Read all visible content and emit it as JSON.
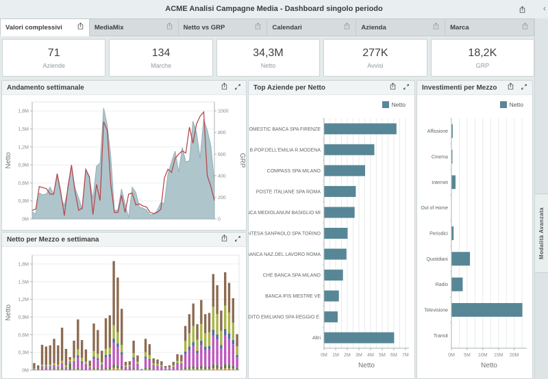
{
  "app": {
    "title": "ACME Analisi Campagne Media - Dashboard singolo periodo",
    "advanced_panel_label": "Modalità Avanzata",
    "collapse_glyph": "‹"
  },
  "colors": {
    "accent_teal": "#578796",
    "area_fill": "#aec5cb",
    "area_edge": "#93aeb6",
    "grp_line": "#b5494f",
    "page_bg": "#e4e9ea",
    "panel_border": "#cdd4d6",
    "tab_active_bg": "#ffffff",
    "tab_inactive_bg": "#d6dcde"
  },
  "icons": {
    "export": "export-share-icon",
    "expand": "fullscreen-expand-icon",
    "collapse": "chevron-left-icon"
  },
  "tabs": [
    {
      "label": "Valori complessivi",
      "active": true
    },
    {
      "label": "MediaMix",
      "active": false
    },
    {
      "label": "Netto vs GRP",
      "active": false
    },
    {
      "label": "Calendari",
      "active": false
    },
    {
      "label": "Azienda",
      "active": false
    },
    {
      "label": "Marca",
      "active": false
    }
  ],
  "kpis": [
    {
      "value": "71",
      "label": "Aziende"
    },
    {
      "value": "134",
      "label": "Marche"
    },
    {
      "value": "34,3M",
      "label": "Netto"
    },
    {
      "value": "277K",
      "label": "Avvisi"
    },
    {
      "value": "18,2K",
      "label": "GRP"
    }
  ],
  "chart_data": [
    {
      "type": "combo",
      "title": "Andamento settimanale",
      "x_unit": "settimana (1-52)",
      "left_axis": {
        "label": "Netto",
        "max": 1.95,
        "tick_values": [
          0,
          0.3,
          0.6,
          0.9,
          1.2,
          1.5,
          1.8
        ],
        "tick_labels": [
          "0M",
          "0,3M",
          "0,6M",
          "0,9M",
          "1,2M",
          "1,5M",
          "1,8M"
        ]
      },
      "right_axis": {
        "label": "GRP",
        "max": 1083,
        "tick_values": [
          0,
          200,
          400,
          600,
          800,
          1000
        ],
        "tick_labels": [
          "0",
          "200",
          "400",
          "600",
          "800",
          "1000"
        ]
      },
      "series": [
        {
          "name": "Netto",
          "type": "area",
          "color": "#aec5cb",
          "edge": "#93aeb6",
          "values": [
            0.12,
            0.08,
            0.43,
            0.4,
            0.42,
            0.53,
            0.42,
            0.72,
            0.36,
            0.22,
            0.5,
            0.86,
            0.51,
            0.35,
            0.16,
            0.79,
            0.68,
            0.33,
            0.88,
            0.93,
            1.85,
            1.57,
            1.04,
            0.14,
            0.15,
            0.5,
            0.25,
            0.02,
            0.53,
            0.44,
            0.2,
            0.18,
            0.15,
            0.07,
            0.08,
            0.14,
            0.27,
            0.26,
            0.75,
            0.95,
            1.13,
            0.78,
            1.19,
            0.95,
            0.97,
            1.63,
            1.44,
            1.01,
            1.66,
            1.48,
            1.22,
            0.61
          ]
        },
        {
          "name": "GRP",
          "type": "line",
          "color": "#b5494f",
          "values": [
            80,
            90,
            300,
            290,
            280,
            230,
            230,
            420,
            250,
            30,
            300,
            500,
            250,
            80,
            100,
            460,
            390,
            40,
            320,
            170,
            900,
            820,
            320,
            60,
            60,
            220,
            60,
            230,
            240,
            130,
            140,
            120,
            110,
            60,
            50,
            60,
            90,
            380,
            460,
            430,
            560,
            600,
            630,
            610,
            850,
            700,
            880,
            950,
            990,
            400,
            300,
            170
          ]
        }
      ]
    },
    {
      "type": "stacked-bar",
      "title": "Netto per Mezzo e settimana",
      "ylabel": "Netto",
      "ymax": 1.95,
      "ytick_values": [
        0,
        0.3,
        0.6,
        0.9,
        1.2,
        1.5,
        1.8
      ],
      "ytick_labels": [
        "0M",
        "0,3M",
        "0,6M",
        "0,9M",
        "1,2M",
        "1,5M",
        "1,8M"
      ],
      "totals": [
        0.12,
        0.08,
        0.43,
        0.4,
        0.42,
        0.53,
        0.42,
        0.72,
        0.36,
        0.22,
        0.5,
        0.86,
        0.51,
        0.35,
        0.16,
        0.79,
        0.68,
        0.33,
        0.88,
        0.93,
        1.85,
        1.57,
        1.04,
        0.14,
        0.15,
        0.5,
        0.25,
        0.02,
        0.53,
        0.44,
        0.2,
        0.18,
        0.15,
        0.07,
        0.08,
        0.14,
        0.27,
        0.26,
        0.75,
        0.95,
        1.13,
        0.78,
        1.19,
        0.95,
        0.97,
        1.63,
        1.44,
        1.01,
        1.66,
        1.48,
        1.22,
        0.61
      ],
      "segments": [
        {
          "name": "orange",
          "color": "#d2872f"
        },
        {
          "name": "green",
          "color": "#5c7a43"
        },
        {
          "name": "magenta",
          "color": "#bf57be"
        },
        {
          "name": "blue",
          "color": "#4f6d9e"
        },
        {
          "name": "olive",
          "color": "#a9b445"
        },
        {
          "name": "brown",
          "color": "#8c6b51"
        }
      ],
      "profiles": {
        "p1": [
          0.02,
          0.04,
          0.08,
          0.02,
          0.06,
          0.78
        ],
        "p2": [
          0.02,
          0.03,
          0.2,
          0.04,
          0.12,
          0.59
        ],
        "p3": [
          0.03,
          0.05,
          0.3,
          0.05,
          0.15,
          0.42
        ],
        "p4": [
          0.02,
          0.04,
          0.3,
          0.06,
          0.24,
          0.34
        ],
        "p5": [
          0.02,
          0.5,
          0.1,
          0.05,
          0.13,
          0.2
        ]
      },
      "week_profiles": [
        "p1",
        "p1",
        "p1",
        "p1",
        "p1",
        "p1",
        "p1",
        "p1",
        "p1",
        "p5",
        "p2",
        "p2",
        "p2",
        "p2",
        "p2",
        "p2",
        "p2",
        "p2",
        "p2",
        "p2",
        "p2",
        "p2",
        "p2",
        "p3",
        "p3",
        "p3",
        "p3",
        "p3",
        "p3",
        "p3",
        "p3",
        "p3",
        "p3",
        "p3",
        "p3",
        "p3",
        "p3",
        "p3",
        "p4",
        "p4",
        "p4",
        "p4",
        "p4",
        "p4",
        "p4",
        "p4",
        "p4",
        "p4",
        "p4",
        "p4",
        "p4",
        "p4"
      ]
    },
    {
      "type": "hbar",
      "title": "Top Aziende per Netto",
      "legend": [
        "Netto"
      ],
      "bar_color": "#578796",
      "categories": [
        "FINDOMESTIC BANCA SPA FIRENZE",
        "B.POP.DELL'EMILIA R.MODENA",
        "COMPASS SPA MILANO",
        "POSTE ITALIANE SPA ROMA",
        "BANCA MEDIOLANUM BASIGLIO MI",
        "INTESA SANPAOLO SPA TORINO",
        "BANCA NAZ.DEL LAVORO ROMA",
        "CHE BANCA SPA MILANO",
        "BANCA IFIS MESTRE VE",
        "CREDITO EMILIANO SPA REGGIO E.",
        "Altri"
      ],
      "values": [
        6.2,
        4.3,
        3.5,
        2.7,
        2.6,
        2.0,
        1.9,
        1.6,
        1.25,
        1.15,
        6.0
      ],
      "xmax": 7.3,
      "xtick_values": [
        0,
        1,
        2,
        3,
        4,
        5,
        6,
        7
      ],
      "xtick_labels": [
        "0M",
        "1M",
        "2M",
        "3M",
        "4M",
        "5M",
        "6M",
        "7M"
      ],
      "grid_step": 0.5,
      "xlabel": "Netto"
    },
    {
      "type": "hbar",
      "title": "Investimenti per Mezzo",
      "legend": [
        "Netto"
      ],
      "bar_color": "#578796",
      "categories": [
        "Affissione",
        "Cinema",
        "Internet",
        "Out of Home",
        "Periodici",
        "Quotidiani",
        "Radio",
        "Televisione",
        "Transit"
      ],
      "values": [
        0.3,
        0.05,
        1.2,
        0,
        0.6,
        5.8,
        3.5,
        22.5,
        0
      ],
      "xmax": 24,
      "xtick_values": [
        0,
        5,
        10,
        15,
        20
      ],
      "xtick_labels": [
        "0M",
        "5M",
        "10M",
        "15M",
        "20M"
      ],
      "grid_step": 2.5,
      "xlabel": "Netto"
    }
  ]
}
